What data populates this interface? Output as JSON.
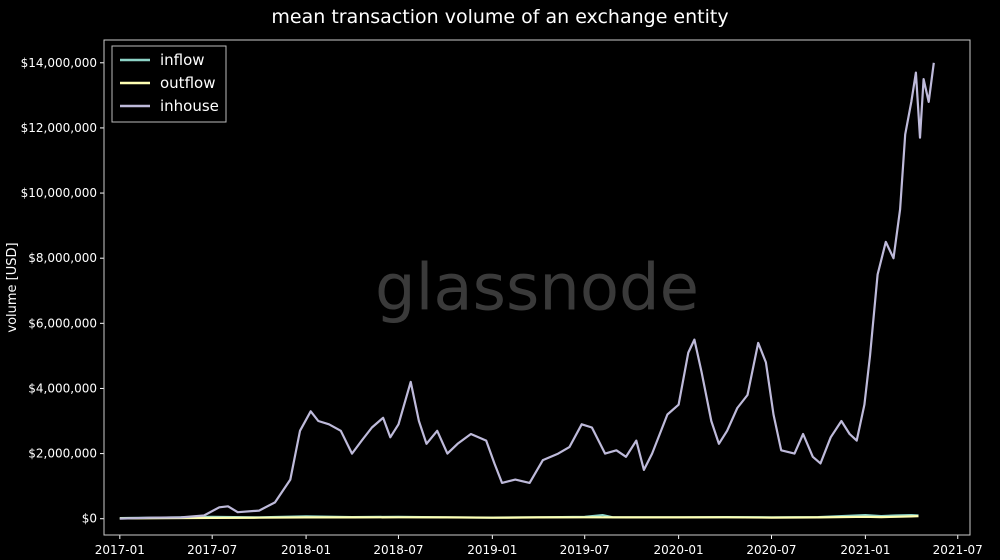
{
  "chart_data": {
    "type": "line",
    "title": "mean transaction volume of an exchange entity",
    "xlabel": "",
    "ylabel": "volume [USD]",
    "watermark": "glassnode",
    "x_ticks": [
      "2017-01",
      "2017-07",
      "2018-01",
      "2018-07",
      "2019-01",
      "2019-07",
      "2020-01",
      "2020-07",
      "2021-01",
      "2021-07"
    ],
    "y_ticks": [
      "$0",
      "$2,000,000",
      "$4,000,000",
      "$6,000,000",
      "$8,000,000",
      "$10,000,000",
      "$12,000,000",
      "$14,000,000"
    ],
    "y_tick_values": [
      0,
      2000000,
      4000000,
      6000000,
      8000000,
      10000000,
      12000000,
      14000000
    ],
    "xlim": [
      "2016-12-01",
      "2021-07-25"
    ],
    "ylim": [
      -500000,
      14700000
    ],
    "legend_position": "top-left",
    "grid": false,
    "series": [
      {
        "name": "inflow",
        "color": "#8dd3c7",
        "points": [
          [
            "2017-01-01",
            20000
          ],
          [
            "2017-04-01",
            35000
          ],
          [
            "2017-07-01",
            60000
          ],
          [
            "2017-10-01",
            40000
          ],
          [
            "2018-01-01",
            70000
          ],
          [
            "2018-04-01",
            50000
          ],
          [
            "2018-07-01",
            60000
          ],
          [
            "2018-10-01",
            45000
          ],
          [
            "2019-01-01",
            35000
          ],
          [
            "2019-04-01",
            45000
          ],
          [
            "2019-07-01",
            55000
          ],
          [
            "2019-08-05",
            110000
          ],
          [
            "2019-08-25",
            45000
          ],
          [
            "2019-10-01",
            45000
          ],
          [
            "2020-01-01",
            40000
          ],
          [
            "2020-04-01",
            50000
          ],
          [
            "2020-07-01",
            45000
          ],
          [
            "2020-10-01",
            50000
          ],
          [
            "2021-01-01",
            110000
          ],
          [
            "2021-02-01",
            80000
          ],
          [
            "2021-03-01",
            100000
          ],
          [
            "2021-04-01",
            110000
          ],
          [
            "2021-04-15",
            100000
          ]
        ]
      },
      {
        "name": "outflow",
        "color": "#ffffb3",
        "points": [
          [
            "2017-01-01",
            10000
          ],
          [
            "2017-04-01",
            15000
          ],
          [
            "2017-07-01",
            25000
          ],
          [
            "2017-10-01",
            30000
          ],
          [
            "2018-01-01",
            40000
          ],
          [
            "2018-04-01",
            40000
          ],
          [
            "2018-07-01",
            45000
          ],
          [
            "2018-10-01",
            40000
          ],
          [
            "2019-01-01",
            30000
          ],
          [
            "2019-04-01",
            40000
          ],
          [
            "2019-07-01",
            45000
          ],
          [
            "2019-10-01",
            40000
          ],
          [
            "2020-01-01",
            40000
          ],
          [
            "2020-04-01",
            45000
          ],
          [
            "2020-07-01",
            35000
          ],
          [
            "2020-10-01",
            40000
          ],
          [
            "2021-01-01",
            60000
          ],
          [
            "2021-02-01",
            50000
          ],
          [
            "2021-03-01",
            60000
          ],
          [
            "2021-04-01",
            70000
          ],
          [
            "2021-04-15",
            80000
          ]
        ]
      },
      {
        "name": "inhouse",
        "color": "#bebada",
        "points": [
          [
            "2017-01-01",
            0
          ],
          [
            "2017-03-01",
            30000
          ],
          [
            "2017-05-01",
            40000
          ],
          [
            "2017-06-15",
            100000
          ],
          [
            "2017-07-15",
            350000
          ],
          [
            "2017-08-01",
            380000
          ],
          [
            "2017-08-20",
            200000
          ],
          [
            "2017-10-01",
            250000
          ],
          [
            "2017-11-01",
            500000
          ],
          [
            "2017-12-01",
            1200000
          ],
          [
            "2017-12-20",
            2700000
          ],
          [
            "2018-01-10",
            3300000
          ],
          [
            "2018-01-25",
            3000000
          ],
          [
            "2018-02-15",
            2900000
          ],
          [
            "2018-03-10",
            2700000
          ],
          [
            "2018-04-01",
            2000000
          ],
          [
            "2018-04-20",
            2400000
          ],
          [
            "2018-05-10",
            2800000
          ],
          [
            "2018-06-01",
            3100000
          ],
          [
            "2018-06-15",
            2500000
          ],
          [
            "2018-07-01",
            2900000
          ],
          [
            "2018-07-25",
            4200000
          ],
          [
            "2018-08-10",
            3000000
          ],
          [
            "2018-08-25",
            2300000
          ],
          [
            "2018-09-15",
            2700000
          ],
          [
            "2018-10-05",
            2000000
          ],
          [
            "2018-10-25",
            2300000
          ],
          [
            "2018-11-20",
            2600000
          ],
          [
            "2018-12-20",
            2400000
          ],
          [
            "2019-01-05",
            1700000
          ],
          [
            "2019-01-20",
            1100000
          ],
          [
            "2019-02-15",
            1200000
          ],
          [
            "2019-03-15",
            1100000
          ],
          [
            "2019-04-10",
            1800000
          ],
          [
            "2019-05-10",
            2000000
          ],
          [
            "2019-06-01",
            2200000
          ],
          [
            "2019-06-25",
            2900000
          ],
          [
            "2019-07-15",
            2800000
          ],
          [
            "2019-08-10",
            2000000
          ],
          [
            "2019-09-01",
            2100000
          ],
          [
            "2019-09-20",
            1900000
          ],
          [
            "2019-10-10",
            2400000
          ],
          [
            "2019-10-25",
            1500000
          ],
          [
            "2019-11-10",
            2000000
          ],
          [
            "2019-12-10",
            3200000
          ],
          [
            "2020-01-01",
            3500000
          ],
          [
            "2020-01-20",
            5100000
          ],
          [
            "2020-02-01",
            5500000
          ],
          [
            "2020-02-15",
            4500000
          ],
          [
            "2020-03-05",
            3000000
          ],
          [
            "2020-03-20",
            2300000
          ],
          [
            "2020-04-05",
            2700000
          ],
          [
            "2020-04-25",
            3400000
          ],
          [
            "2020-05-15",
            3800000
          ],
          [
            "2020-06-05",
            5400000
          ],
          [
            "2020-06-20",
            4800000
          ],
          [
            "2020-07-05",
            3200000
          ],
          [
            "2020-07-20",
            2100000
          ],
          [
            "2020-08-15",
            2000000
          ],
          [
            "2020-09-01",
            2600000
          ],
          [
            "2020-09-20",
            1900000
          ],
          [
            "2020-10-05",
            1700000
          ],
          [
            "2020-10-25",
            2500000
          ],
          [
            "2020-11-15",
            3000000
          ],
          [
            "2020-12-01",
            2600000
          ],
          [
            "2020-12-15",
            2400000
          ],
          [
            "2020-12-30",
            3500000
          ],
          [
            "2021-01-10",
            5000000
          ],
          [
            "2021-01-25",
            7500000
          ],
          [
            "2021-02-10",
            8500000
          ],
          [
            "2021-02-25",
            8000000
          ],
          [
            "2021-03-10",
            9500000
          ],
          [
            "2021-03-20",
            11800000
          ],
          [
            "2021-04-01",
            12800000
          ],
          [
            "2021-04-10",
            13700000
          ],
          [
            "2021-04-18",
            11700000
          ],
          [
            "2021-04-25",
            13500000
          ],
          [
            "2021-05-05",
            12800000
          ],
          [
            "2021-05-15",
            14000000
          ]
        ]
      }
    ]
  }
}
